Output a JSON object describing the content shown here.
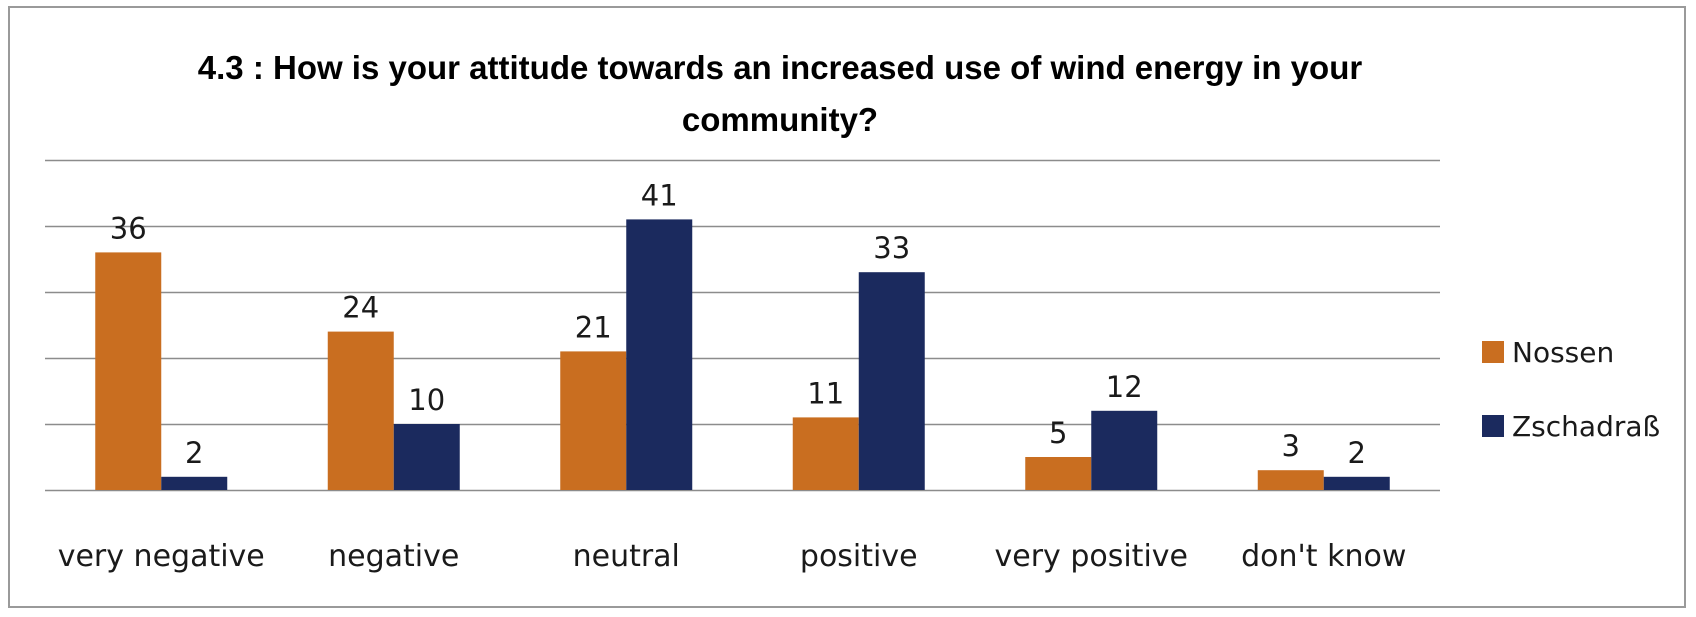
{
  "chart_data": {
    "type": "bar",
    "title_lines": [
      "4.3 : How is your attitude towards an increased use of wind energy in your",
      "community?"
    ],
    "categories": [
      "very negative",
      "negative",
      "neutral",
      "positive",
      "very positive",
      "don't know"
    ],
    "series": [
      {
        "name": "Nossen",
        "color": "#C96E20",
        "values": [
          36,
          24,
          21,
          11,
          5,
          3
        ]
      },
      {
        "name": "Zschadraß",
        "color": "#1B2A5E",
        "values": [
          2,
          10,
          41,
          33,
          12,
          2
        ]
      }
    ],
    "ylim": [
      0,
      50
    ],
    "grid": true,
    "legend": "right"
  }
}
